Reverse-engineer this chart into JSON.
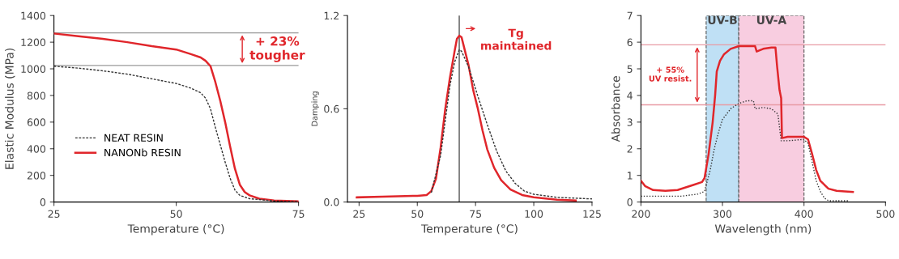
{
  "chart_data": [
    {
      "type": "line",
      "xlabel": "Temperature (°C)",
      "ylabel": "Elastic Modulus (MPa)",
      "xlim": [
        25,
        75
      ],
      "xticks": [
        25,
        50,
        75
      ],
      "ylim": [
        0,
        1400
      ],
      "yticks": [
        0,
        200,
        400,
        600,
        800,
        1000,
        1200,
        1400
      ],
      "legend": "left",
      "grid": false,
      "series": [
        {
          "name": "NEAT RESIN",
          "color": "#333333",
          "line_style": "dashed",
          "x": [
            25,
            30,
            35,
            40,
            45,
            50,
            53,
            55,
            56,
            57,
            58,
            59,
            60,
            61,
            62,
            63,
            65,
            70,
            75
          ],
          "values": [
            1020,
            1005,
            985,
            960,
            925,
            890,
            855,
            820,
            780,
            700,
            560,
            430,
            300,
            180,
            90,
            50,
            25,
            8,
            3
          ]
        },
        {
          "name": "NANONb RESIN",
          "color": "#e0262b",
          "line_style": "solid",
          "x": [
            25,
            30,
            35,
            40,
            45,
            50,
            53,
            55,
            56,
            57,
            58,
            59,
            60,
            61,
            62,
            63,
            64,
            65,
            67,
            70,
            75
          ],
          "values": [
            1265,
            1245,
            1225,
            1200,
            1170,
            1145,
            1110,
            1085,
            1060,
            1020,
            900,
            760,
            600,
            420,
            250,
            130,
            75,
            50,
            25,
            12,
            5
          ]
        }
      ],
      "ref_lines": [
        {
          "axis": "y",
          "value": 1270,
          "color": "#999999"
        },
        {
          "axis": "y",
          "value": 1025,
          "color": "#999999"
        }
      ],
      "annotations": [
        "+ 23%\ntougher"
      ]
    },
    {
      "type": "line",
      "xlabel": "Temperature (°C)",
      "ylabel": "Damping",
      "xlim": [
        20,
        125
      ],
      "xticks": [
        25,
        50,
        75,
        100,
        125
      ],
      "ylim": [
        0,
        1.2
      ],
      "yticks": [
        {
          "value": 0,
          "label": "0.0"
        },
        {
          "value": 0.6,
          "label": "0.6"
        },
        {
          "value": 1.2,
          "label": "1.2"
        }
      ],
      "grid": false,
      "series": [
        {
          "color": "#333333",
          "line_style": "dashed",
          "x": [
            56,
            60,
            64,
            66,
            68,
            69,
            72,
            76,
            80,
            84,
            88,
            92,
            96,
            100,
            110,
            125
          ],
          "values": [
            0.06,
            0.3,
            0.75,
            0.9,
            0.98,
            0.97,
            0.87,
            0.68,
            0.5,
            0.33,
            0.2,
            0.12,
            0.07,
            0.05,
            0.03,
            0.02
          ]
        },
        {
          "color": "#e0262b",
          "line_style": "solid",
          "x": [
            24,
            35,
            50,
            54,
            56,
            58,
            60,
            62,
            64,
            66,
            67,
            68,
            69,
            70,
            72,
            74,
            76,
            78,
            80,
            83,
            86,
            90,
            95,
            100,
            110,
            118
          ],
          "values": [
            0.03,
            0.035,
            0.04,
            0.045,
            0.07,
            0.15,
            0.35,
            0.6,
            0.8,
            0.97,
            1.05,
            1.07,
            1.06,
            1.0,
            0.88,
            0.72,
            0.6,
            0.46,
            0.34,
            0.22,
            0.14,
            0.08,
            0.045,
            0.03,
            0.015,
            0.01
          ]
        }
      ],
      "ref_lines": [
        {
          "axis": "x",
          "value": 68,
          "color": "#555555"
        }
      ],
      "annotations": [
        "Tg\nmaintained"
      ]
    },
    {
      "type": "line",
      "xlabel": "Wavelength (nm)",
      "ylabel": "Absorbance",
      "xlim": [
        200,
        500
      ],
      "xticks": [
        200,
        300,
        400,
        500
      ],
      "ylim": [
        0,
        7
      ],
      "yticks": [
        0,
        1,
        2,
        3,
        4,
        5,
        6,
        7
      ],
      "grid": false,
      "bands": [
        {
          "axis": "x",
          "from": 280,
          "to": 320,
          "label": "UV-B",
          "color": "#bfe0f5"
        },
        {
          "axis": "x",
          "from": 320,
          "to": 400,
          "label": "UV-A",
          "color": "#f8cde0"
        }
      ],
      "series": [
        {
          "color": "#333333",
          "line_style": "dotted",
          "x": [
            200,
            220,
            250,
            270,
            278,
            285,
            290,
            295,
            300,
            310,
            320,
            330,
            338,
            340,
            350,
            360,
            368,
            372,
            380,
            400,
            405,
            410,
            415,
            420,
            425,
            430,
            455
          ],
          "values": [
            0.22,
            0.22,
            0.22,
            0.3,
            0.4,
            1.2,
            2.0,
            2.6,
            3.1,
            3.5,
            3.7,
            3.8,
            3.8,
            3.5,
            3.55,
            3.5,
            3.3,
            2.3,
            2.3,
            2.35,
            2.2,
            1.5,
            0.8,
            0.4,
            0.15,
            0.05,
            0.05
          ]
        },
        {
          "color": "#e0262b",
          "line_style": "solid",
          "x": [
            200,
            205,
            215,
            230,
            245,
            255,
            265,
            275,
            278,
            283,
            288,
            291,
            293,
            297,
            302,
            310,
            320,
            330,
            340,
            342,
            350,
            360,
            365,
            367,
            370,
            372,
            373,
            380,
            400,
            405,
            410,
            415,
            420,
            430,
            440,
            450,
            460
          ],
          "values": [
            0.8,
            0.6,
            0.45,
            0.42,
            0.45,
            0.55,
            0.65,
            0.75,
            0.9,
            1.8,
            3.0,
            4.0,
            4.9,
            5.3,
            5.55,
            5.75,
            5.85,
            5.85,
            5.85,
            5.65,
            5.75,
            5.8,
            5.8,
            5.1,
            4.2,
            3.9,
            2.4,
            2.45,
            2.45,
            2.35,
            1.8,
            1.2,
            0.8,
            0.5,
            0.42,
            0.4,
            0.38
          ]
        }
      ],
      "ref_lines": [
        {
          "axis": "y",
          "value": 5.9,
          "color": "#e89aa4"
        },
        {
          "axis": "y",
          "value": 3.65,
          "color": "#e89aa4"
        }
      ],
      "annotations": [
        "+ 55%\nUV resist."
      ]
    }
  ]
}
